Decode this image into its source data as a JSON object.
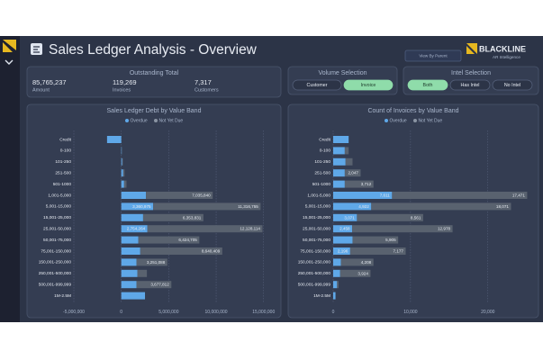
{
  "header": {
    "title": "Sales Ledger Analysis - Overview",
    "button": "View By Parent",
    "logo": "BLACKLINE",
    "logo_sub": "AR Intelligence"
  },
  "kpis": {
    "title": "Outstanding Total",
    "items": [
      {
        "value": "85,765,237",
        "label": "Amount"
      },
      {
        "value": "119,269",
        "label": "Invoices"
      },
      {
        "value": "7,317",
        "label": "Customers"
      }
    ]
  },
  "volume_selection": {
    "title": "Volume Selection",
    "options": [
      "Customer",
      "Invoice"
    ],
    "active": 1
  },
  "intel_selection": {
    "title": "Intel Selection",
    "options": [
      "Both",
      "Has Intel",
      "No Intel"
    ],
    "active": 0
  },
  "chart_data": [
    {
      "type": "hbar-stacked",
      "title": "Sales Ledger Debt by Value Band",
      "categories": [
        "Credit",
        "0-100",
        "101-250",
        "251-500",
        "501-1000",
        "1,001-5,000",
        "5,001-15,000",
        "15,001-25,000",
        "25,001-50,000",
        "50,001-75,000",
        "75,001-150,000",
        "150,001-250,000",
        "250,001-500,000",
        "500,001-999,999",
        "1M-2.5M"
      ],
      "series": [
        {
          "name": "Overdue",
          "color": "#5fa8e8",
          "values": [
            -1500000,
            50000,
            100000,
            200000,
            300000,
            2600000,
            3360975,
            2300000,
            2754264,
            1800000,
            2000000,
            1600000,
            1700000,
            1600000,
            2500000
          ],
          "value_labels": [
            null,
            null,
            null,
            null,
            null,
            null,
            "3,360,975",
            null,
            "2,754,264",
            null,
            null,
            null,
            null,
            null,
            null
          ]
        },
        {
          "name": "Not Yet Due",
          "color": "#59626f",
          "values": [
            0,
            20000,
            60000,
            150000,
            250000,
            7035840,
            11316755,
            6353831,
            12128114,
            6424705,
            8640409,
            3251088,
            1000000,
            3677812,
            0
          ],
          "value_labels": [
            null,
            null,
            null,
            null,
            null,
            "7,035,840",
            "11,316,755",
            "6,353,831",
            "12,128,114",
            "6,424,705",
            "8,640,409",
            "3,251,088",
            null,
            "3,677,812",
            null
          ]
        }
      ],
      "xlim": [
        -5000000,
        15500000
      ],
      "xticks": [
        {
          "value": -5000000,
          "label": "-5,000,000"
        },
        0,
        {
          "value": 5000000,
          "label": "5,000,000"
        },
        {
          "value": 10000000,
          "label": "10,000,000"
        },
        {
          "value": 15000000,
          "label": "15,000,000"
        }
      ],
      "grid": true
    },
    {
      "type": "hbar-stacked",
      "title": "Count of Invoices by Value Band",
      "categories": [
        "Credit",
        "0-100",
        "101-250",
        "251-500",
        "501-1000",
        "1,001-5,000",
        "5,001-15,000",
        "15,001-25,000",
        "25,001-50,000",
        "50,001-75,000",
        "75,001-150,000",
        "150,001-250,000",
        "250,001-500,000",
        "500,001-999,999",
        "1M-2.5M"
      ],
      "series": [
        {
          "name": "Overdue",
          "color": "#5fa8e8",
          "values": [
            2000,
            1500,
            1600,
            1500,
            1500,
            7611,
            4922,
            3071,
            2458,
            2500,
            2196,
            1000,
            900,
            500,
            300
          ],
          "value_labels": [
            null,
            null,
            null,
            null,
            null,
            "7,611",
            "4,922",
            "3,071",
            "2,458",
            null,
            "2,196",
            null,
            null,
            null,
            null
          ]
        },
        {
          "name": "Not Yet Due",
          "color": "#59626f",
          "values": [
            0,
            500,
            900,
            2047,
            3712,
            17471,
            18071,
            8561,
            12978,
            5905,
            7177,
            4208,
            3924,
            200,
            0
          ],
          "value_labels": [
            null,
            null,
            null,
            "2,047",
            "3,712",
            "17,471",
            "18,071",
            "8,561",
            "12,978",
            "5,905",
            "7,177",
            "4,208",
            "3,924",
            null,
            null
          ]
        }
      ],
      "xlim": [
        0,
        25500
      ],
      "xticks": [
        0,
        {
          "value": 10000,
          "label": "10,000"
        },
        {
          "value": 20000,
          "label": "20,000"
        }
      ],
      "grid": true
    }
  ]
}
